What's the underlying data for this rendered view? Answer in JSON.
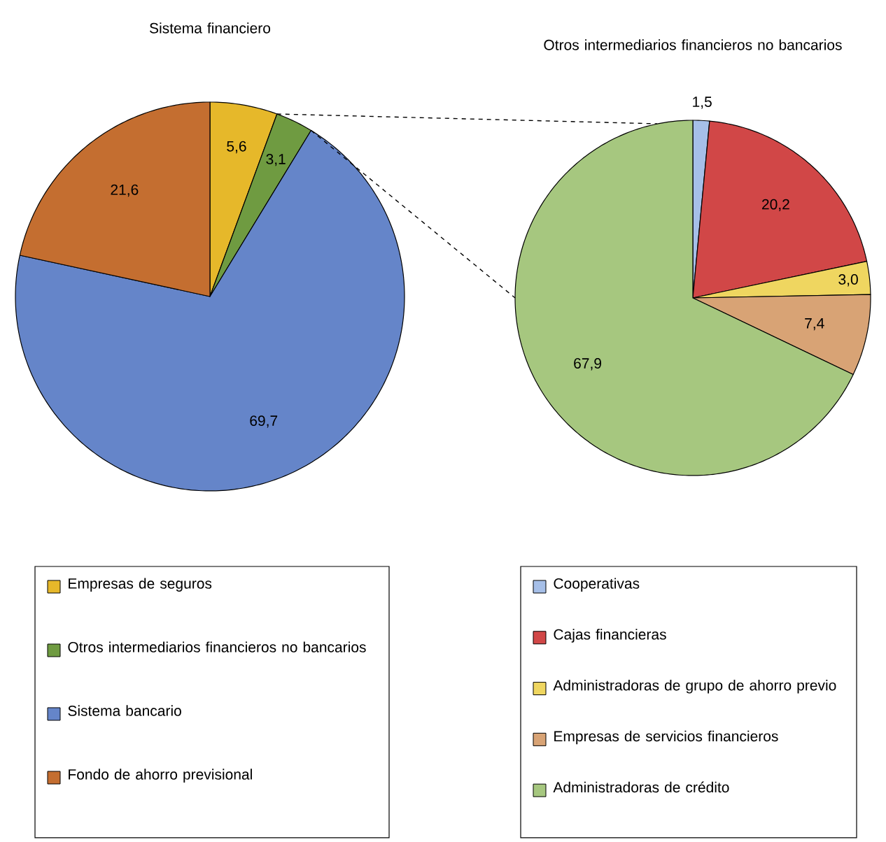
{
  "chart_data": [
    {
      "type": "pie",
      "title": "Sistema financiero",
      "legend": "bottom",
      "categories": [
        "Empresas de seguros",
        "Otros intermediarios financieros no bancarios",
        "Sistema bancario",
        "Fondo de ahorro previsional"
      ],
      "values": [
        5.6,
        3.1,
        69.7,
        21.6
      ],
      "value_labels": [
        "5,6",
        "3,1",
        "69,7",
        "21,6"
      ],
      "colors": [
        "#e6b82a",
        "#6f9b41",
        "#6585c9",
        "#c46e30"
      ]
    },
    {
      "type": "pie",
      "title": "Otros intermediarios financieros no bancarios",
      "legend": "bottom",
      "categories": [
        "Cooperativas",
        "Cajas financieras",
        "Administradoras de grupo de ahorro previo",
        "Empresas de servicios financieros",
        "Administradoras de crédito"
      ],
      "values": [
        1.5,
        20.2,
        3.0,
        7.4,
        67.9
      ],
      "value_labels": [
        "1,5",
        "20,2",
        "3,0",
        "7,4",
        "67,9"
      ],
      "colors": [
        "#a6bfe8",
        "#d14747",
        "#efd660",
        "#d8a375",
        "#a6c77f"
      ]
    }
  ]
}
